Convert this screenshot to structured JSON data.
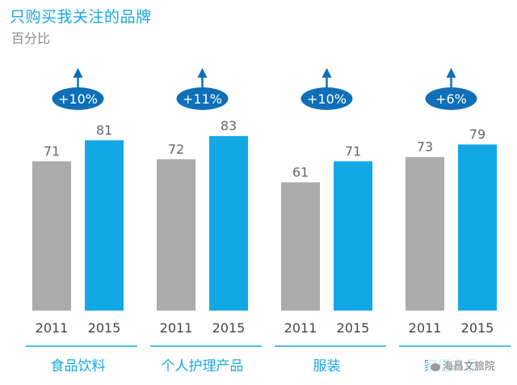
{
  "header": {
    "title": "只购买我关注的品牌",
    "subtitle": "百分比"
  },
  "watermark": "海昌文旅院",
  "colors": {
    "accent": "#17a9e1",
    "bar_2011": "#ababab",
    "bar_2015": "#12a8e6",
    "badge": "#0f6fb8",
    "value_text": "#666666",
    "year_text": "#444444",
    "divider": "#17a9e1"
  },
  "chart_data": {
    "type": "bar",
    "title": "只购买我关注的品牌",
    "ylabel": "百分比",
    "xlabel": "",
    "ylim": [
      0,
      100
    ],
    "grid": false,
    "categories": [
      "食品饮料",
      "个人护理产品",
      "服装",
      "家居产品"
    ],
    "years": [
      "2011",
      "2015"
    ],
    "series": [
      {
        "name": "2011",
        "values": [
          71,
          72,
          61,
          73
        ]
      },
      {
        "name": "2015",
        "values": [
          81,
          83,
          71,
          79
        ]
      }
    ],
    "changes": [
      "+10%",
      "+11%",
      "+10%",
      "+6%"
    ]
  }
}
